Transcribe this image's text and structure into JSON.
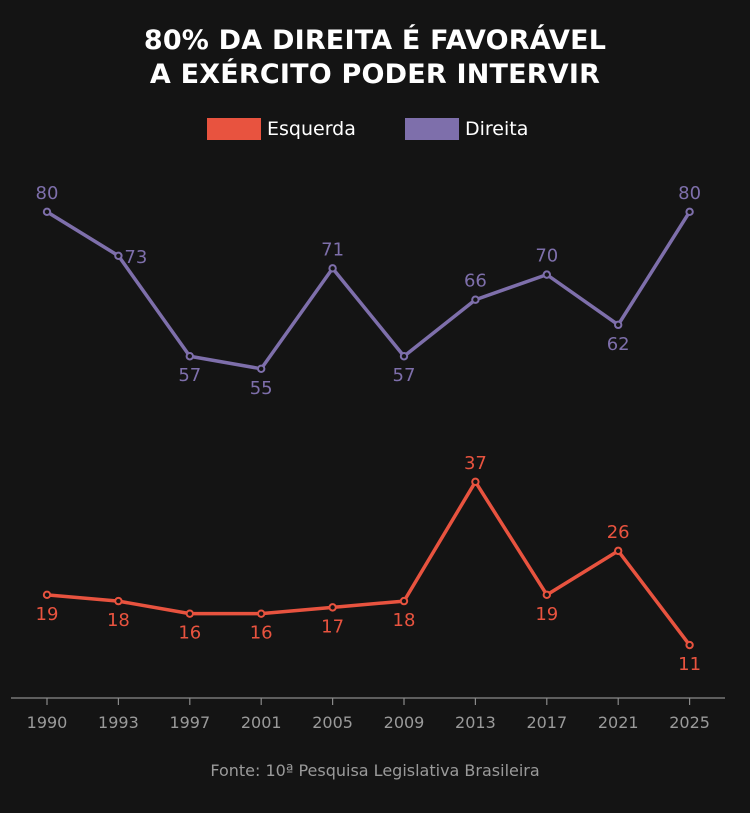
{
  "title_line1": "80% DA DIREITA É FAVORÁVEL",
  "title_line2": "A EXÉRCITO PODER INTERVIR",
  "source": "Fonte: 10ª Pesquisa Legislativa Brasileira",
  "colors": {
    "background": "#141414",
    "esquerda": "#e8533f",
    "direita": "#7e6fab",
    "axis": "#8a8a8a",
    "tick_text": "#9a9a9a"
  },
  "chart_data": {
    "type": "line",
    "title": "80% DA DIREITA É FAVORÁVEL A EXÉRCITO PODER INTERVIR",
    "categories": [
      "1990",
      "1993",
      "1997",
      "2001",
      "2005",
      "2009",
      "2013",
      "2017",
      "2021",
      "2025"
    ],
    "series": [
      {
        "name": "Esquerda",
        "color": "#e8533f",
        "values": [
          19,
          18,
          16,
          16,
          17,
          18,
          37,
          19,
          26,
          11
        ],
        "label_positions": [
          "below",
          "below",
          "below",
          "below",
          "below",
          "below",
          "above",
          "below",
          "above",
          "below"
        ]
      },
      {
        "name": "Direita",
        "color": "#7e6fab",
        "values": [
          80,
          73,
          57,
          55,
          71,
          57,
          66,
          70,
          62,
          80
        ],
        "label_positions": [
          "above",
          "right",
          "below",
          "below",
          "above",
          "below",
          "above",
          "above",
          "below",
          "above"
        ]
      }
    ],
    "ylim": [
      4,
      83
    ],
    "grid": false,
    "legend_position": "top-center",
    "data_labels": true
  }
}
